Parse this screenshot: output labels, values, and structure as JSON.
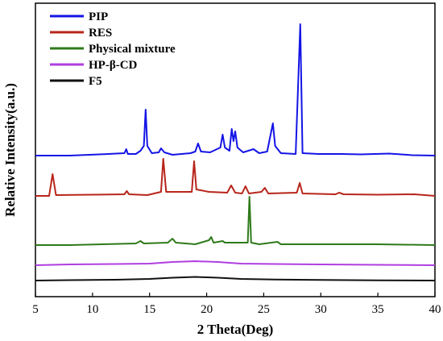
{
  "chart_data": {
    "type": "line",
    "title": "",
    "xlabel": "2 Theta(Deg)",
    "ylabel": "Relative Intensity(a.u.)",
    "xlim": [
      5,
      40
    ],
    "x_ticks": [
      5,
      10,
      15,
      20,
      25,
      30,
      35,
      40
    ],
    "y_ticks": [],
    "grid": false,
    "legend_position": "top-left",
    "series": [
      {
        "name": "PIP",
        "color": "#1414e6",
        "points": [
          [
            5,
            0
          ],
          [
            8,
            0
          ],
          [
            10.6,
            1.5
          ],
          [
            12.8,
            3
          ],
          [
            12.95,
            8
          ],
          [
            13.1,
            2
          ],
          [
            13.8,
            2
          ],
          [
            14.2,
            6
          ],
          [
            14.5,
            12
          ],
          [
            14.65,
            57
          ],
          [
            14.8,
            12
          ],
          [
            15.2,
            3
          ],
          [
            15.8,
            4
          ],
          [
            16,
            9
          ],
          [
            16.3,
            4
          ],
          [
            17,
            1
          ],
          [
            18.6,
            3
          ],
          [
            19.0,
            5
          ],
          [
            19.25,
            15
          ],
          [
            19.5,
            5
          ],
          [
            20.3,
            4
          ],
          [
            21.2,
            10
          ],
          [
            21.4,
            26
          ],
          [
            21.6,
            10
          ],
          [
            22.0,
            6
          ],
          [
            22.2,
            33
          ],
          [
            22.35,
            18
          ],
          [
            22.5,
            30
          ],
          [
            22.7,
            10
          ],
          [
            23.2,
            4
          ],
          [
            24.1,
            8
          ],
          [
            24.6,
            3
          ],
          [
            25.3,
            5
          ],
          [
            25.8,
            40
          ],
          [
            26.0,
            12
          ],
          [
            26.5,
            3
          ],
          [
            27.8,
            2
          ],
          [
            28.2,
            163
          ],
          [
            28.4,
            3
          ],
          [
            29.8,
            2
          ],
          [
            31.8,
            2
          ],
          [
            33.5,
            1.5
          ],
          [
            36,
            2.5
          ],
          [
            38,
            0.5
          ],
          [
            40,
            0
          ]
        ]
      },
      {
        "name": "RES",
        "color": "#b8251a",
        "points": [
          [
            5,
            0
          ],
          [
            6.2,
            0
          ],
          [
            6.5,
            27
          ],
          [
            6.8,
            1
          ],
          [
            10.0,
            1.5
          ],
          [
            12.8,
            2
          ],
          [
            13.0,
            6
          ],
          [
            13.2,
            2
          ],
          [
            14.8,
            1
          ],
          [
            16.0,
            5
          ],
          [
            16.2,
            46
          ],
          [
            16.45,
            5
          ],
          [
            18.7,
            5
          ],
          [
            18.9,
            43
          ],
          [
            19.1,
            8
          ],
          [
            20.2,
            5
          ],
          [
            21.8,
            4
          ],
          [
            22.15,
            13
          ],
          [
            22.5,
            4
          ],
          [
            23.1,
            3
          ],
          [
            23.4,
            12
          ],
          [
            23.7,
            3
          ],
          [
            24.8,
            5
          ],
          [
            25.1,
            10
          ],
          [
            25.4,
            3
          ],
          [
            27.9,
            4
          ],
          [
            28.15,
            16
          ],
          [
            28.4,
            3
          ],
          [
            31.3,
            2
          ],
          [
            31.6,
            4
          ],
          [
            32,
            2
          ],
          [
            35,
            1.5
          ],
          [
            38.2,
            2
          ],
          [
            40,
            0
          ]
        ]
      },
      {
        "name": "Physical mixture",
        "color": "#2e7a1a",
        "points": [
          [
            5,
            0
          ],
          [
            8,
            0
          ],
          [
            13.8,
            2
          ],
          [
            14.2,
            5
          ],
          [
            14.5,
            2
          ],
          [
            16.6,
            3
          ],
          [
            17.0,
            8
          ],
          [
            17.3,
            3
          ],
          [
            19,
            1
          ],
          [
            20.2,
            6
          ],
          [
            20.4,
            10
          ],
          [
            20.6,
            3
          ],
          [
            21.4,
            5
          ],
          [
            21.6,
            3
          ],
          [
            23.0,
            3
          ],
          [
            23.6,
            3
          ],
          [
            23.75,
            60
          ],
          [
            23.9,
            3
          ],
          [
            24.6,
            1
          ],
          [
            26.2,
            4
          ],
          [
            26.5,
            1
          ],
          [
            30,
            1
          ],
          [
            35,
            1
          ],
          [
            40,
            0
          ]
        ]
      },
      {
        "name": "HP-β-CD",
        "color": "#b03ee0",
        "points": [
          [
            5,
            0
          ],
          [
            8,
            1
          ],
          [
            12,
            1.5
          ],
          [
            15,
            2
          ],
          [
            17,
            4
          ],
          [
            19,
            5
          ],
          [
            21,
            4
          ],
          [
            23,
            2
          ],
          [
            26,
            1.5
          ],
          [
            30,
            1
          ],
          [
            35,
            0.5
          ],
          [
            40,
            0
          ]
        ]
      },
      {
        "name": "F5",
        "color": "#111111",
        "points": [
          [
            5,
            0
          ],
          [
            8,
            0.5
          ],
          [
            12,
            1
          ],
          [
            15,
            2
          ],
          [
            17,
            3.5
          ],
          [
            19,
            4.5
          ],
          [
            21,
            3.5
          ],
          [
            23,
            2
          ],
          [
            26,
            1.2
          ],
          [
            30,
            0.8
          ],
          [
            35,
            0.3
          ],
          [
            40,
            0
          ]
        ]
      }
    ]
  }
}
